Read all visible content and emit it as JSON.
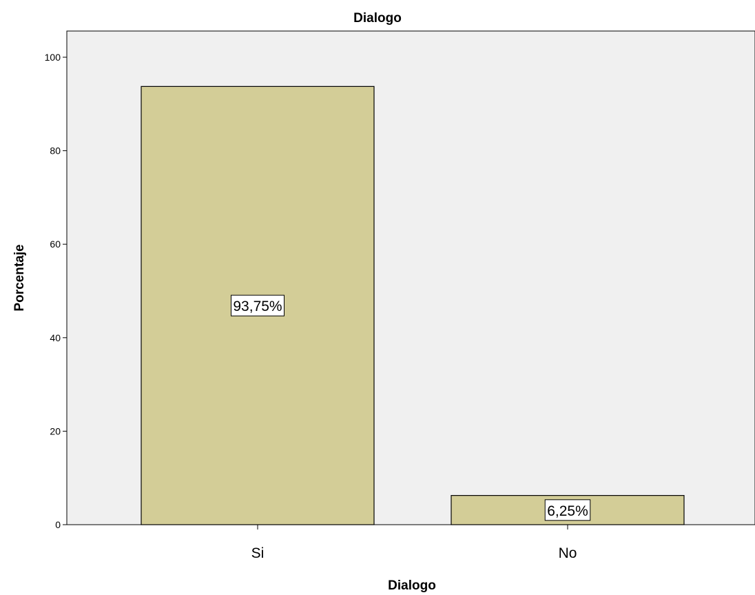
{
  "chart_data": {
    "type": "bar",
    "title": "Dialogo",
    "xlabel": "Dialogo",
    "ylabel": "Porcentaje",
    "categories": [
      "Si",
      "No"
    ],
    "values": [
      93.75,
      6.25
    ],
    "data_labels": [
      "93,75%",
      "6,25%"
    ],
    "yticks": [
      0,
      20,
      40,
      60,
      80,
      100
    ],
    "ylim": [
      0,
      105
    ],
    "grid": false,
    "legend": "none",
    "colors": {
      "bar_fill": "#d3cd97",
      "bar_stroke": "#000000",
      "plot_background": "#f0f0f0"
    }
  }
}
